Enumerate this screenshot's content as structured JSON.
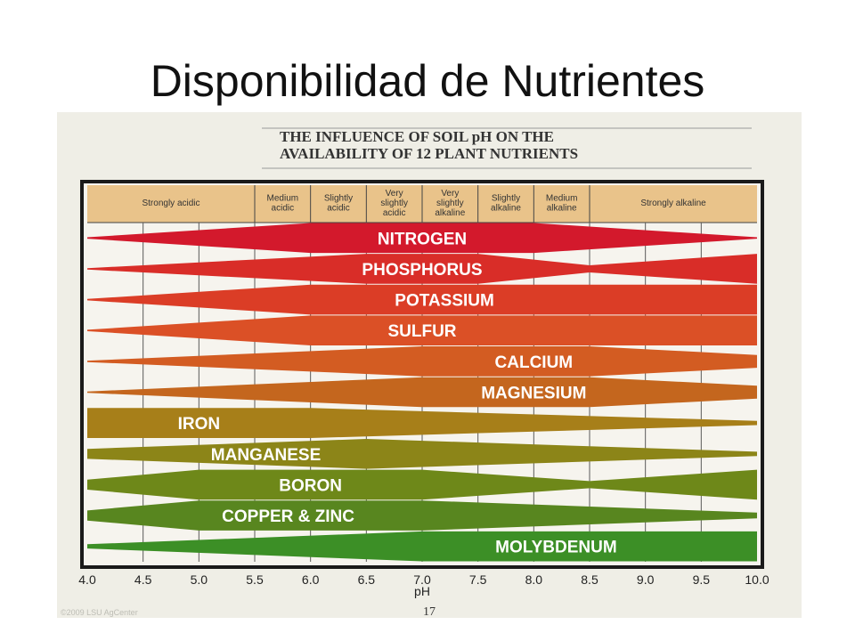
{
  "slide": {
    "title": "Disponibilidad de Nutrientes"
  },
  "chart_data": {
    "type": "area",
    "title_lines": [
      "THE INFLUENCE OF SOIL pH ON THE",
      "AVAILABILITY OF 12 PLANT NUTRIENTS"
    ],
    "xlabel": "pH",
    "xlim": [
      4.0,
      10.0
    ],
    "x_ticks": [
      4.0,
      4.5,
      5.0,
      5.5,
      6.0,
      6.5,
      7.0,
      7.5,
      8.0,
      8.5,
      9.0,
      9.5,
      10.0
    ],
    "x_tick_labels": [
      "4.0",
      "4.5",
      "5.0",
      "5.5",
      "6.0",
      "6.5",
      "7.0",
      "7.5",
      "8.0",
      "8.5",
      "9.0",
      "9.5",
      "10.0"
    ],
    "grid": true,
    "zones": [
      {
        "label": [
          "Strongly acidic"
        ],
        "from": 4.0,
        "to": 5.5
      },
      {
        "label": [
          "Medium",
          "acidic"
        ],
        "from": 5.5,
        "to": 6.0
      },
      {
        "label": [
          "Slightly",
          "acidic"
        ],
        "from": 6.0,
        "to": 6.5
      },
      {
        "label": [
          "Very",
          "slightly",
          "acidic"
        ],
        "from": 6.5,
        "to": 7.0
      },
      {
        "label": [
          "Very",
          "slightly",
          "alkaline"
        ],
        "from": 7.0,
        "to": 7.5
      },
      {
        "label": [
          "Slightly",
          "alkaline"
        ],
        "from": 7.5,
        "to": 8.0
      },
      {
        "label": [
          "Medium",
          "alkaline"
        ],
        "from": 8.0,
        "to": 8.5
      },
      {
        "label": [
          "Strongly alkaline"
        ],
        "from": 8.5,
        "to": 10.0
      }
    ],
    "series": [
      {
        "name": "NITROGEN",
        "color": "#d3192c",
        "label_x": 7.0,
        "x": [
          4.0,
          6.0,
          8.0,
          10.0
        ],
        "availability": [
          0.0,
          1.0,
          1.0,
          0.0
        ]
      },
      {
        "name": "PHOSPHORUS",
        "color": "#d92d28",
        "label_x": 7.0,
        "x": [
          4.0,
          6.5,
          7.5,
          8.5,
          10.0
        ],
        "availability": [
          0.0,
          1.0,
          1.0,
          0.2,
          1.0
        ]
      },
      {
        "name": "POTASSIUM",
        "color": "#db3d26",
        "label_x": 7.2,
        "x": [
          4.0,
          6.0,
          10.0
        ],
        "availability": [
          0.0,
          1.0,
          1.0
        ]
      },
      {
        "name": "SULFUR",
        "color": "#db5026",
        "label_x": 7.0,
        "x": [
          4.0,
          6.0,
          10.0
        ],
        "availability": [
          0.0,
          1.0,
          1.0
        ]
      },
      {
        "name": "CALCIUM",
        "color": "#d35c22",
        "label_x": 8.0,
        "x": [
          4.0,
          7.0,
          8.5,
          10.0
        ],
        "availability": [
          0.0,
          1.0,
          1.0,
          0.4
        ]
      },
      {
        "name": "MAGNESIUM",
        "color": "#c4661e",
        "label_x": 8.0,
        "x": [
          4.0,
          7.0,
          8.5,
          10.0
        ],
        "availability": [
          0.0,
          1.0,
          1.0,
          0.4
        ]
      },
      {
        "name": "IRON",
        "color": "#a77f19",
        "label_x": 5.0,
        "x": [
          4.0,
          6.0,
          10.0
        ],
        "availability": [
          1.0,
          1.0,
          0.1
        ]
      },
      {
        "name": "MANGANESE",
        "color": "#8c8518",
        "label_x": 5.6,
        "x": [
          4.0,
          6.5,
          10.0
        ],
        "availability": [
          0.3,
          1.0,
          0.1
        ]
      },
      {
        "name": "BORON",
        "color": "#6e8819",
        "label_x": 6.0,
        "x": [
          4.0,
          5.0,
          7.0,
          8.5,
          10.0
        ],
        "availability": [
          0.3,
          1.0,
          1.0,
          0.2,
          1.0
        ]
      },
      {
        "name": "COPPER & ZINC",
        "color": "#58861f",
        "label_x": 5.8,
        "x": [
          4.0,
          5.0,
          7.0,
          10.0
        ],
        "availability": [
          0.3,
          1.0,
          1.0,
          0.15
        ]
      },
      {
        "name": "MOLYBDENUM",
        "color": "#3c8f26",
        "label_x": 8.2,
        "x": [
          4.0,
          7.0,
          10.0
        ],
        "availability": [
          0.1,
          1.0,
          1.0
        ]
      }
    ],
    "page_number": "17",
    "credit": "©2009 LSU AgCenter"
  }
}
